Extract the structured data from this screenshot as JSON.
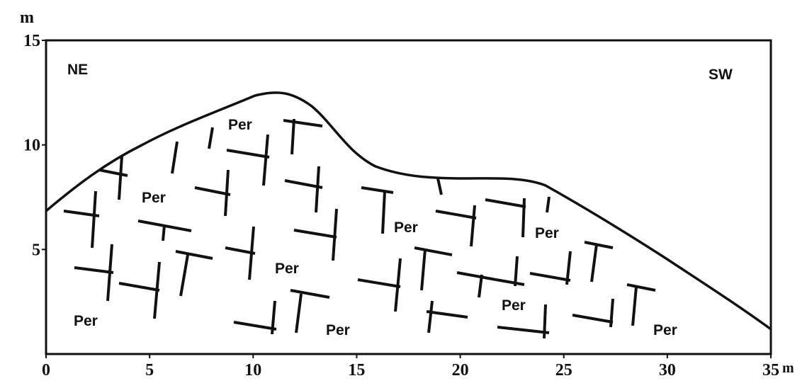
{
  "y_axis": {
    "unit": "m",
    "ticks": [
      5,
      10,
      15
    ],
    "range": [
      0,
      15
    ]
  },
  "x_axis": {
    "unit": "m",
    "ticks": [
      0,
      5,
      10,
      15,
      20,
      25,
      30,
      35
    ],
    "range": [
      0,
      35
    ]
  },
  "directions": {
    "left": "NE",
    "right": "SW"
  },
  "rock_labels": [
    "Per",
    "Per",
    "Per",
    "Per",
    "Per",
    "Per",
    "Per",
    "Per",
    "Per"
  ]
}
